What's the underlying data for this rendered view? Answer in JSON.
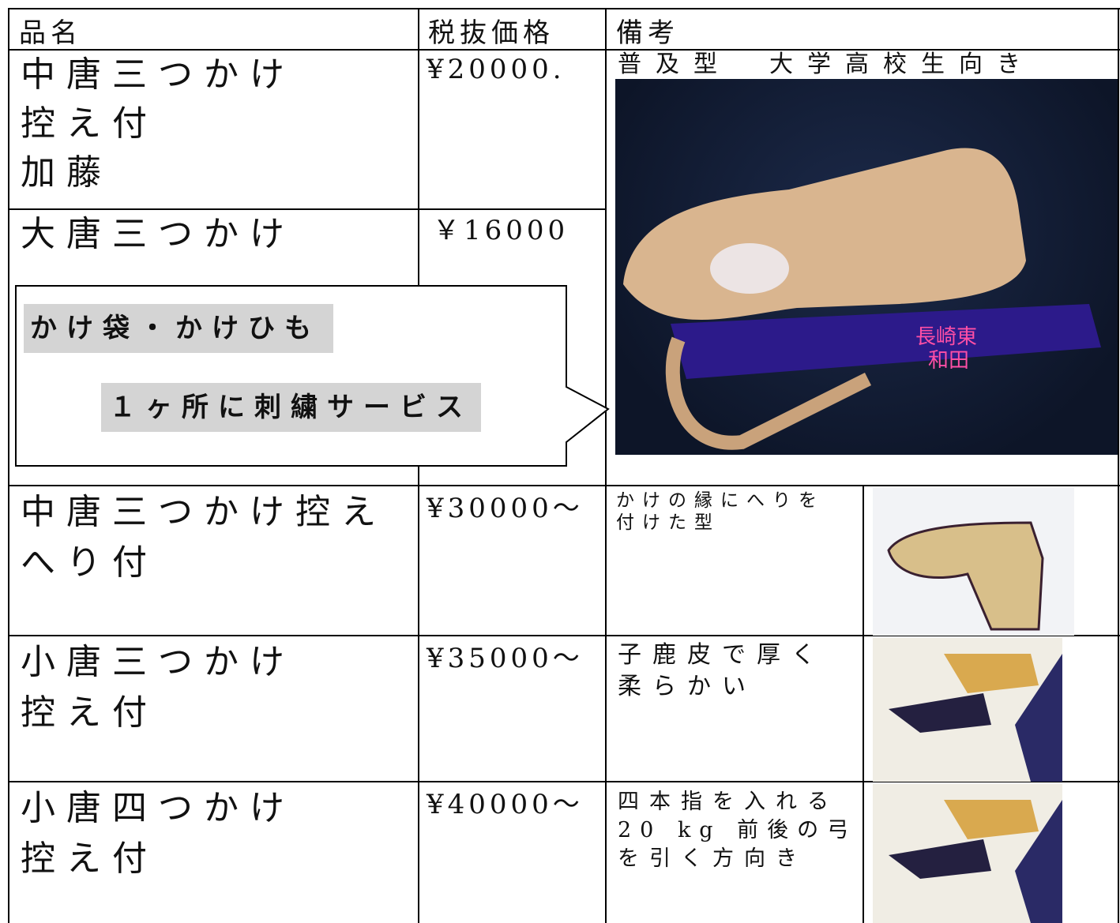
{
  "table": {
    "header": [
      "品名",
      "税抜価格",
      "備考"
    ],
    "rows": [
      {
        "name": [
          "中唐三つかけ",
          "控え付",
          "加藤"
        ],
        "price": "¥20000.",
        "note": [
          "普及型　大学高校生向き"
        ]
      },
      {
        "name": [
          "大唐三つかけ"
        ],
        "price": "￥16000"
      },
      {
        "name": [
          "中唐三つかけ控え",
          "へり付"
        ],
        "price": "¥30000～",
        "note": [
          "かけの縁にへりを",
          "付けた型"
        ]
      },
      {
        "name": [
          "小唐三つかけ",
          "控え付"
        ],
        "price": "¥35000～",
        "note": [
          "子鹿皮で厚く",
          "柔らかい"
        ]
      },
      {
        "name": [
          "小唐四つかけ",
          "控え付"
        ],
        "price": "¥40000～",
        "note": [
          "四本指を入れる",
          "20 kg 前後の弓",
          "を引く方向き"
        ]
      }
    ]
  },
  "callout": {
    "lines": [
      "かけ袋・かけひも",
      "１ヶ所に刺繍サービス"
    ]
  },
  "photo_label": [
    "長崎東",
    "和田"
  ]
}
